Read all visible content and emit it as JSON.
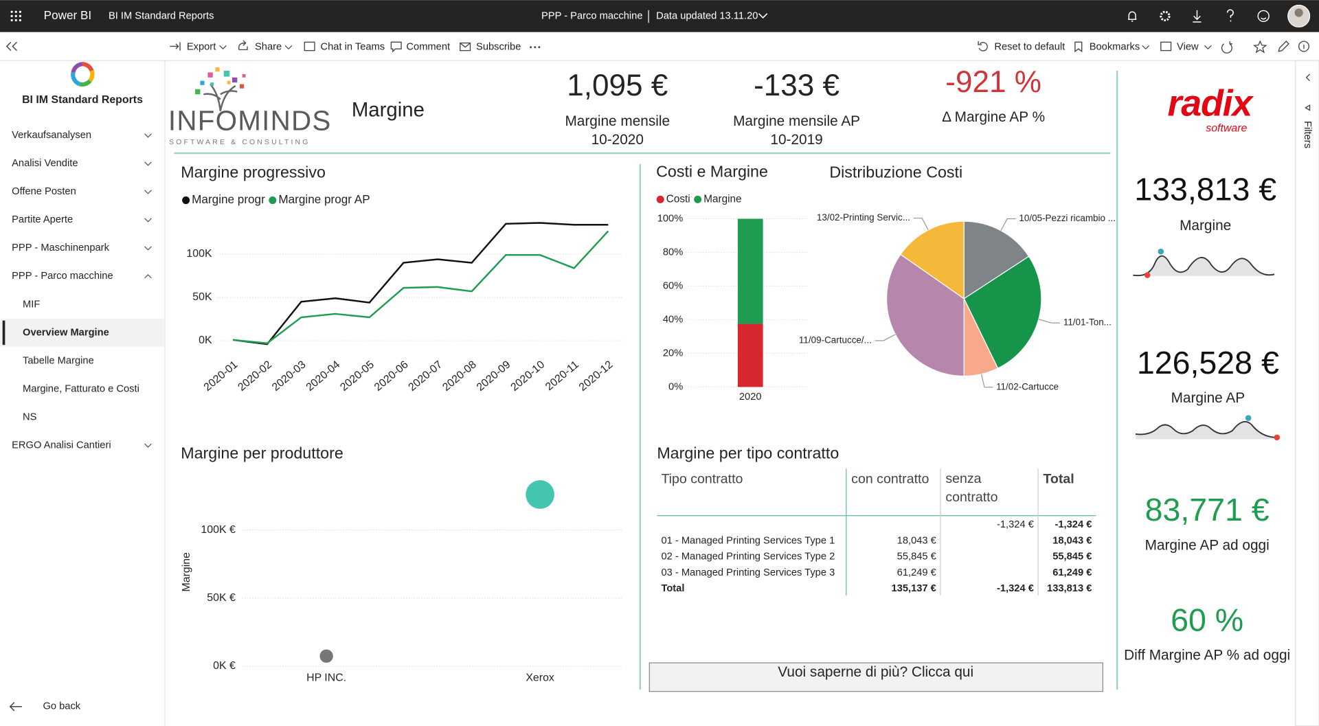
{
  "top_bar": {
    "app": "Power BI",
    "workspace": "BI IM Standard Reports",
    "report": "PPP - Parco macchine",
    "data_updated": "Data updated 13.11.20"
  },
  "toolbar": {
    "actions": [
      "Export",
      "Share",
      "Chat in Teams",
      "Comment",
      "Subscribe"
    ],
    "view_actions": [
      "Reset to default",
      "Bookmarks",
      "View"
    ]
  },
  "nav": {
    "title": "BI IM Standard Reports",
    "items": [
      {
        "label": "Verkaufsanalysen"
      },
      {
        "label": "Analisi Vendite"
      },
      {
        "label": "Offene Posten"
      },
      {
        "label": "Partite Aperte"
      },
      {
        "label": "PPP - Maschinenpark"
      },
      {
        "label": "PPP - Parco macchine",
        "expanded": true
      },
      {
        "label": "MIF",
        "sub": true
      },
      {
        "label": "Overview Margine",
        "sub": true,
        "active": true
      },
      {
        "label": "Tabelle Margine",
        "sub": true
      },
      {
        "label": "Margine, Fatturato e Costi",
        "sub": true
      },
      {
        "label": "NS",
        "sub": true
      },
      {
        "label": "ERGO Analisi Cantieri"
      }
    ],
    "back": "Go back"
  },
  "filters_pane": {
    "label": "Filters"
  },
  "header": {
    "logo": "INFOMINDS",
    "logo_tagline": "SOFTWARE & CONSULTING",
    "page_title": "Margine"
  },
  "kpis": [
    {
      "value": "1,095 €",
      "label": "Margine mensile",
      "period": "10-2020"
    },
    {
      "value": "-133 €",
      "label": "Margine mensile AP",
      "period": "10-2019"
    },
    {
      "value": "-921 %",
      "label": "Δ Margine AP %",
      "color": "#d13438"
    }
  ],
  "chart_data": [
    {
      "type": "line",
      "title": "Margine progressivo",
      "categories": [
        "2020-01",
        "2020-02",
        "2020-03",
        "2020-04",
        "2020-05",
        "2020-06",
        "2020-07",
        "2020-08",
        "2020-09",
        "2020-10",
        "2020-11",
        "2020-12"
      ],
      "series": [
        {
          "name": "Margine progr",
          "color": "#111111",
          "values": [
            1000,
            -4000,
            45000,
            49000,
            44000,
            90000,
            94000,
            90000,
            135000,
            136000,
            133813,
            133813
          ]
        },
        {
          "name": "Margine progr AP",
          "color": "#1e9c4f",
          "values": [
            1000,
            -3000,
            27000,
            31000,
            27000,
            61000,
            62000,
            57000,
            99000,
            99000,
            83771,
            126528
          ]
        }
      ],
      "ylim": [
        -10000,
        140000
      ],
      "yticks": [
        {
          "value": 0,
          "label": "0K"
        },
        {
          "value": 50000,
          "label": "50K"
        },
        {
          "value": 100000,
          "label": "100K"
        }
      ],
      "grid": true
    },
    {
      "type": "bar",
      "stacked": true,
      "title": "Costi e Margine",
      "categories": [
        "2020"
      ],
      "series": [
        {
          "name": "Costi",
          "color": "#d7262e",
          "values": [
            37.5
          ]
        },
        {
          "name": "Margine",
          "color": "#1e9c4f",
          "values": [
            62.5
          ]
        }
      ],
      "ylim": [
        0,
        100
      ],
      "yticks": [
        {
          "value": 0,
          "label": "0%"
        },
        {
          "value": 20,
          "label": "20%"
        },
        {
          "value": 40,
          "label": "40%"
        },
        {
          "value": 60,
          "label": "60%"
        },
        {
          "value": 80,
          "label": "80%"
        },
        {
          "value": 100,
          "label": "100%"
        }
      ],
      "grid": true
    },
    {
      "type": "pie",
      "title": "Distribuzione Costi",
      "categories": [
        "10/05-Pezzi ricambio ...",
        "11/01-Ton...",
        "11/02-Cartucce",
        "11/09-Cartucce/...",
        "13/02-Printing Servic..."
      ],
      "values": [
        15.8,
        27,
        7.2,
        34.7,
        15.3
      ],
      "colors": [
        "#7f8487",
        "#15944a",
        "#f8a98c",
        "#b786ad",
        "#f5b83b"
      ]
    },
    {
      "type": "scatter",
      "title": "Margine per produttore",
      "y_label": "Margine",
      "categories": [
        "HP INC.",
        "Xerox"
      ],
      "values": [
        7400,
        126000
      ],
      "colors": [
        "#777777",
        "#45c4b0"
      ],
      "ylim": [
        0,
        135000
      ],
      "yticks": [
        {
          "value": 0,
          "label": "0K €"
        },
        {
          "value": 50000,
          "label": "50K €"
        },
        {
          "value": 100000,
          "label": "100K €"
        }
      ],
      "grid": true
    }
  ],
  "table": {
    "title": "Margine per tipo contratto",
    "columns": [
      "Tipo contratto",
      "con contratto",
      "senza contratto",
      "Total"
    ],
    "rows": [
      [
        null,
        null,
        "-1,324 €",
        "-1,324 €"
      ],
      [
        "01 - Managed Printing Services Type 1",
        "18,043 €",
        null,
        "18,043 €"
      ],
      [
        "02 - Managed Printing Services Type 2",
        "55,845 €",
        null,
        "55,845 €"
      ],
      [
        "03 - Managed Printing Services Type 3",
        "61,249 €",
        null,
        "61,249 €"
      ],
      [
        "Total",
        "135,137 €",
        "-1,324 €",
        "133,813 €"
      ]
    ]
  },
  "cta": "Vuoi saperne di più? Clicca qui",
  "partner_logo": {
    "name": "radix",
    "tagline": "software"
  },
  "side_kpis": [
    {
      "value": "133,813 €",
      "label": "Margine"
    },
    {
      "value": "126,528 €",
      "label": "Margine AP"
    },
    {
      "value": "83,771 €",
      "label": "Margine AP ad oggi",
      "color": "#1e9c4f"
    },
    {
      "value": "60 %",
      "label": "Diff Margine AP % ad oggi",
      "color": "#1e9c4f"
    }
  ]
}
